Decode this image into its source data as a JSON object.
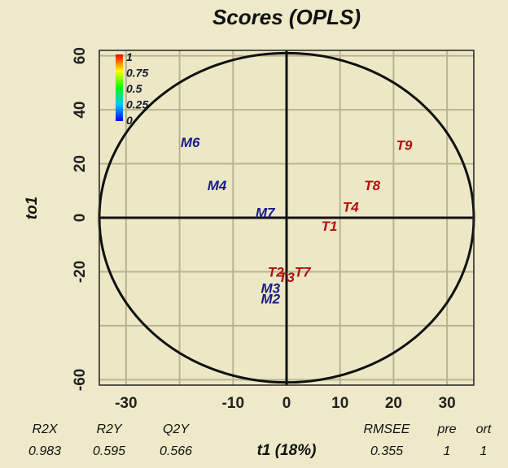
{
  "chart_data": {
    "type": "scatter",
    "title": "Scores (OPLS)",
    "xlabel": "t1 (18%)",
    "ylabel": "to1",
    "xlim": [
      -35,
      35
    ],
    "ylim": [
      -62,
      62
    ],
    "x_ticks": [
      -30,
      -10,
      0,
      10,
      20,
      30
    ],
    "y_ticks": [
      60,
      40,
      20,
      0,
      -20,
      -60
    ],
    "grid": true,
    "colorbar": {
      "labels": [
        "1",
        "0.75",
        "0.5",
        "0.25",
        "0"
      ],
      "colors": [
        "#ff0000",
        "#ffff00",
        "#00ff00",
        "#00c8ff",
        "#0000ff"
      ],
      "position": "top-left"
    },
    "points": [
      {
        "label": "M6",
        "x": -18,
        "y": 28,
        "color": "#1a1a8c"
      },
      {
        "label": "M4",
        "x": -13,
        "y": 12,
        "color": "#1a1a8c"
      },
      {
        "label": "M7",
        "x": -4,
        "y": 2,
        "color": "#1a1a8c"
      },
      {
        "label": "T9",
        "x": 22,
        "y": 27,
        "color": "#b01010"
      },
      {
        "label": "T8",
        "x": 16,
        "y": 12,
        "color": "#b01010"
      },
      {
        "label": "T4",
        "x": 12,
        "y": 4,
        "color": "#b01010"
      },
      {
        "label": "T1",
        "x": 8,
        "y": -3,
        "color": "#b01010"
      },
      {
        "label": "T7",
        "x": 3,
        "y": -20,
        "color": "#b01010"
      },
      {
        "label": "T2",
        "x": -2,
        "y": -20,
        "color": "#b01010"
      },
      {
        "label": "T3",
        "x": 0,
        "y": -22,
        "color": "#b01010"
      },
      {
        "label": "M3",
        "x": -3,
        "y": -26,
        "color": "#1a1a8c"
      },
      {
        "label": "M2",
        "x": -3,
        "y": -30,
        "color": "#1a1a8c"
      }
    ],
    "ellipse": {
      "cx": 0,
      "cy": 0,
      "rx": 35,
      "ry": 61
    },
    "stats": [
      {
        "name": "R2X",
        "value": "0.983"
      },
      {
        "name": "R2Y",
        "value": "0.595"
      },
      {
        "name": "Q2Y",
        "value": "0.566"
      },
      {
        "name": "RMSEE",
        "value": "0.355"
      },
      {
        "name": "pre",
        "value": "1"
      },
      {
        "name": "ort",
        "value": "1"
      }
    ]
  }
}
